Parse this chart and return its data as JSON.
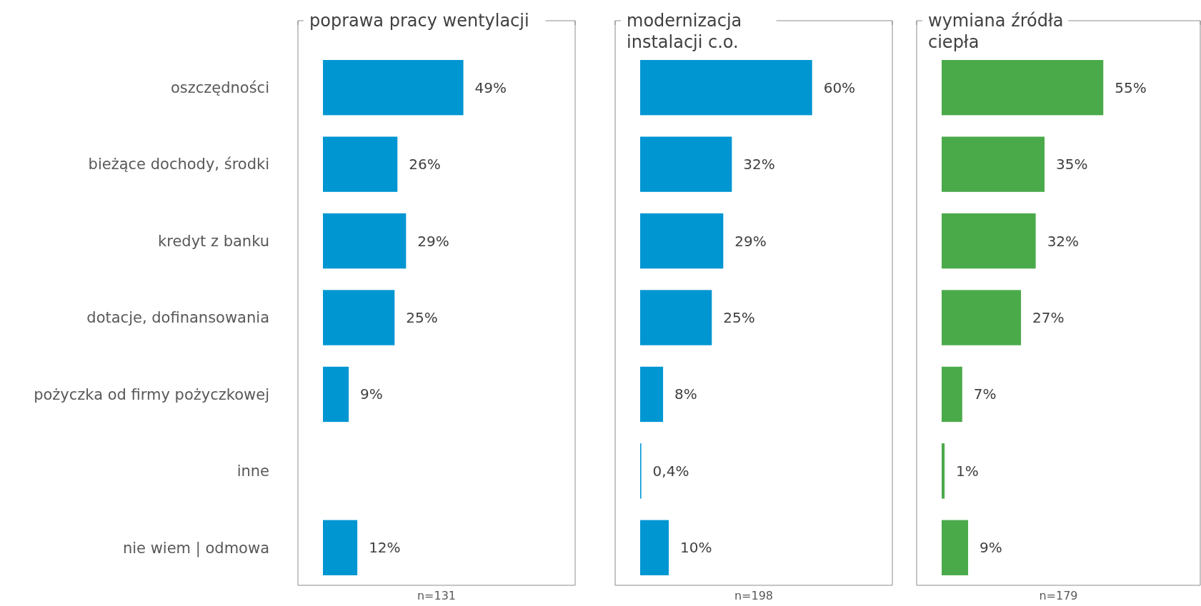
{
  "chart_data": [
    {
      "type": "bar",
      "orientation": "horizontal",
      "title": "poprawa pracy wentylacji",
      "categories": [
        "oszczędności",
        "bieżące dochody, środki",
        "kredyt z banku",
        "dotacje, dofinansowania",
        "pożyczka od firmy pożyczkowej",
        "inne",
        "nie wiem | odmowa"
      ],
      "values": [
        49,
        26,
        29,
        25,
        9,
        null,
        12
      ],
      "value_labels": [
        "49%",
        "26%",
        "29%",
        "25%",
        "9%",
        null,
        "12%"
      ],
      "color": "#0096d2",
      "xlim": [
        0,
        88
      ],
      "tick_labels": "y",
      "annotations": [
        "n=131"
      ]
    },
    {
      "type": "bar",
      "orientation": "horizontal",
      "title": "modernizacja instalacji c.o.",
      "categories": [
        null,
        null,
        null,
        null,
        null,
        null,
        null
      ],
      "values": [
        60,
        32,
        29,
        25,
        8,
        0.4,
        10
      ],
      "value_labels": [
        "60%",
        "32%",
        "29%",
        "25%",
        "8%",
        "0,4%",
        "10%"
      ],
      "color": "#0096d2",
      "xlim": [
        0,
        88
      ],
      "tick_labels": false,
      "annotations": [
        "n=198"
      ]
    },
    {
      "type": "bar",
      "orientation": "horizontal",
      "title": "wymiana źródła ciepła",
      "categories": [
        null,
        null,
        null,
        null,
        null,
        null,
        null
      ],
      "values": [
        55,
        35,
        32,
        27,
        7,
        1,
        9
      ],
      "value_labels": [
        "55%",
        "35%",
        "32%",
        "27%",
        "7%",
        "1%",
        "9%"
      ],
      "color": "#4aaa4a",
      "xlim": [
        0,
        88
      ],
      "tick_labels": false,
      "annotations": [
        "n=179"
      ]
    }
  ]
}
